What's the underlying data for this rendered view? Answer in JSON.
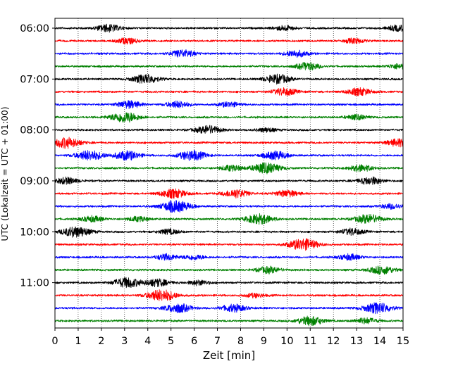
{
  "chart_data": {
    "type": "line",
    "subtype": "helicorder",
    "xlabel": "Zeit  [min]",
    "ylabel": "UTC (Lokalzeit = UTC + 01:00)",
    "xlim": [
      0,
      15
    ],
    "x_ticks": [
      "0",
      "1",
      "2",
      "3",
      "4",
      "5",
      "6",
      "7",
      "8",
      "9",
      "10",
      "11",
      "12",
      "13",
      "14",
      "15"
    ],
    "y_ticks": [
      "06:00",
      "07:00",
      "08:00",
      "09:00",
      "10:00",
      "11:00"
    ],
    "trace_interval_minutes": 15,
    "trace_count": 24,
    "trace_colors": [
      "#000000",
      "#ff0000",
      "#0000ff",
      "#008000"
    ],
    "grid": "vertical dotted at each minute",
    "legend": "none",
    "bursts_by_trace": [
      [
        [
          2.3,
          0.9
        ],
        [
          9.9,
          0.6
        ],
        [
          14.8,
          0.7
        ]
      ],
      [
        [
          3.1,
          0.7
        ],
        [
          12.9,
          0.6
        ]
      ],
      [
        [
          5.5,
          0.9
        ],
        [
          10.4,
          0.8
        ]
      ],
      [
        [
          10.9,
          0.9
        ],
        [
          14.8,
          0.6
        ]
      ],
      [
        [
          3.9,
          1.1
        ],
        [
          9.6,
          1.1
        ]
      ],
      [
        [
          9.9,
          0.9
        ],
        [
          13.1,
          0.9
        ]
      ],
      [
        [
          3.2,
          0.9
        ],
        [
          5.3,
          0.8
        ],
        [
          7.5,
          0.6
        ]
      ],
      [
        [
          3.0,
          1.3
        ],
        [
          13.0,
          0.6
        ]
      ],
      [
        [
          6.6,
          1.0
        ],
        [
          9.1,
          0.5
        ]
      ],
      [
        [
          0.5,
          1.3
        ],
        [
          14.8,
          0.9
        ]
      ],
      [
        [
          1.5,
          1.2
        ],
        [
          3.1,
          1.1
        ],
        [
          5.9,
          1.2
        ],
        [
          9.5,
          1.0
        ]
      ],
      [
        [
          7.6,
          0.7
        ],
        [
          9.1,
          1.3
        ],
        [
          13.2,
          0.8
        ]
      ],
      [
        [
          0.5,
          0.8
        ],
        [
          13.6,
          0.9
        ]
      ],
      [
        [
          5.1,
          1.1
        ],
        [
          7.8,
          1.0
        ],
        [
          10.0,
          0.8
        ]
      ],
      [
        [
          5.2,
          1.4
        ],
        [
          14.5,
          0.6
        ]
      ],
      [
        [
          1.6,
          0.7
        ],
        [
          3.6,
          0.6
        ],
        [
          8.8,
          1.2
        ],
        [
          13.5,
          1.1
        ]
      ],
      [
        [
          0.9,
          1.3
        ],
        [
          4.9,
          0.6
        ],
        [
          12.8,
          0.8
        ]
      ],
      [
        [
          10.7,
          1.4
        ]
      ],
      [
        [
          4.8,
          0.7
        ],
        [
          6.0,
          0.6
        ],
        [
          12.7,
          0.7
        ]
      ],
      [
        [
          9.2,
          0.8
        ],
        [
          14.1,
          1.0
        ]
      ],
      [
        [
          3.1,
          1.2
        ],
        [
          4.4,
          0.9
        ],
        [
          6.2,
          0.6
        ]
      ],
      [
        [
          4.6,
          1.4
        ],
        [
          8.6,
          0.5
        ]
      ],
      [
        [
          5.3,
          1.1
        ],
        [
          7.7,
          0.9
        ],
        [
          13.9,
          1.3
        ]
      ],
      [
        [
          11.0,
          1.1
        ],
        [
          13.4,
          0.7
        ]
      ]
    ]
  }
}
